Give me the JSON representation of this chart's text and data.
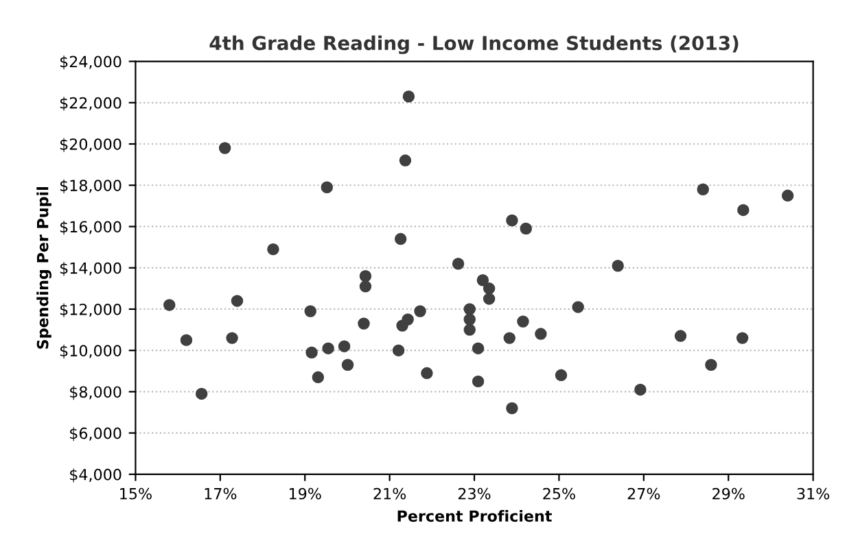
{
  "chart_data": {
    "type": "scatter",
    "title": "4th Grade Reading - Low Income Students (2013)",
    "xlabel": "Percent Proficient",
    "ylabel": "Spending Per Pupil",
    "series": [
      {
        "color": "#404040",
        "x": [
          15.8,
          16.2,
          16.56,
          17.11,
          17.28,
          17.4,
          18.25,
          19.13,
          19.16,
          19.31,
          19.52,
          19.55,
          19.93,
          20.01,
          20.43,
          20.43,
          20.39,
          21.21,
          21.3,
          21.43,
          21.72,
          21.26,
          21.37,
          21.45,
          21.88,
          22.62,
          22.89,
          22.89,
          22.89,
          23.09,
          23.09,
          23.2,
          23.35,
          23.35,
          23.83,
          23.89,
          23.89,
          24.22,
          24.15,
          24.57,
          25.05,
          25.45,
          26.39,
          26.92,
          27.87,
          28.4,
          28.59,
          29.33,
          29.35,
          30.4
        ],
        "values": [
          12200,
          10500,
          7900,
          19800,
          10600,
          12400,
          14900,
          11900,
          9900,
          8700,
          17900,
          10100,
          10200,
          9300,
          13600,
          13100,
          11300,
          10000,
          11200,
          11500,
          11900,
          15400,
          19200,
          22300,
          8900,
          14200,
          12000,
          11500,
          11000,
          10100,
          8500,
          13400,
          13000,
          12500,
          10600,
          7200,
          16300,
          15900,
          11400,
          10800,
          8800,
          12100,
          14100,
          8100,
          10700,
          17800,
          9300,
          10600,
          16800,
          17500
        ]
      }
    ],
    "marker": "circle",
    "grid": "y",
    "xlim": [
      15,
      31
    ],
    "xticks": [
      {
        "value": 15,
        "label": "15%"
      },
      {
        "value": 17,
        "label": "17%"
      },
      {
        "value": 19,
        "label": "19%"
      },
      {
        "value": 21,
        "label": "21%"
      },
      {
        "value": 23,
        "label": "23%"
      },
      {
        "value": 25,
        "label": "25%"
      },
      {
        "value": 27,
        "label": "27%"
      },
      {
        "value": 29,
        "label": "29%"
      },
      {
        "value": 31,
        "label": "31%"
      }
    ],
    "ylim": [
      4000,
      24000
    ],
    "yticks": [
      {
        "value": 4000,
        "label": "$4,000"
      },
      {
        "value": 6000,
        "label": "$6,000"
      },
      {
        "value": 8000,
        "label": "$8,000"
      },
      {
        "value": 10000,
        "label": "$10,000"
      },
      {
        "value": 12000,
        "label": "$12,000"
      },
      {
        "value": 14000,
        "label": "$14,000"
      },
      {
        "value": 16000,
        "label": "$16,000"
      },
      {
        "value": 18000,
        "label": "$18,000"
      },
      {
        "value": 20000,
        "label": "$20,000"
      },
      {
        "value": 22000,
        "label": "$22,000"
      },
      {
        "value": 24000,
        "label": "$24,000"
      }
    ]
  }
}
